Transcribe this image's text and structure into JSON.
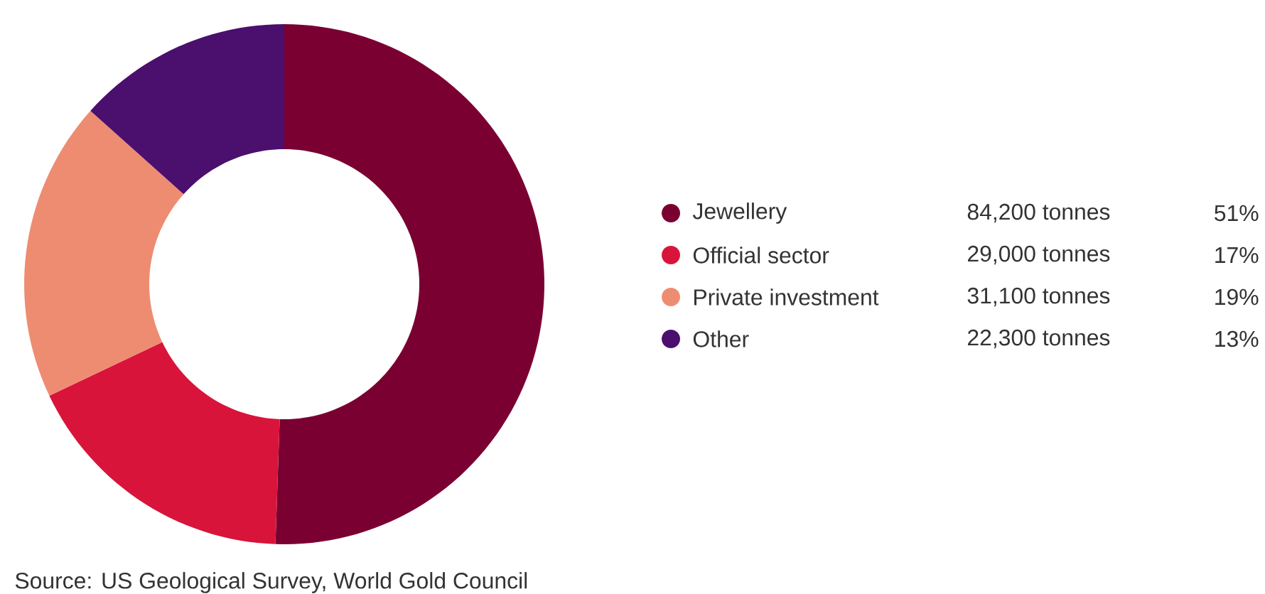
{
  "chart_data": {
    "type": "donut",
    "categories": [
      "Jewellery",
      "Official sector",
      "Private investment",
      "Other"
    ],
    "values": [
      84200,
      29000,
      31100,
      22300
    ],
    "colors": [
      "#7b0032",
      "#d9143a",
      "#ee8c72",
      "#4b0f6e"
    ],
    "value_labels": [
      "84,200 tonnes",
      "29,000 tonnes",
      "31,100 tonnes",
      "22,300 tonnes"
    ],
    "legend": "right",
    "annotations": [
      "51%",
      "17%",
      "19%",
      "13%",
      "Source: US Geological Survey, World Gold Council"
    ]
  }
}
